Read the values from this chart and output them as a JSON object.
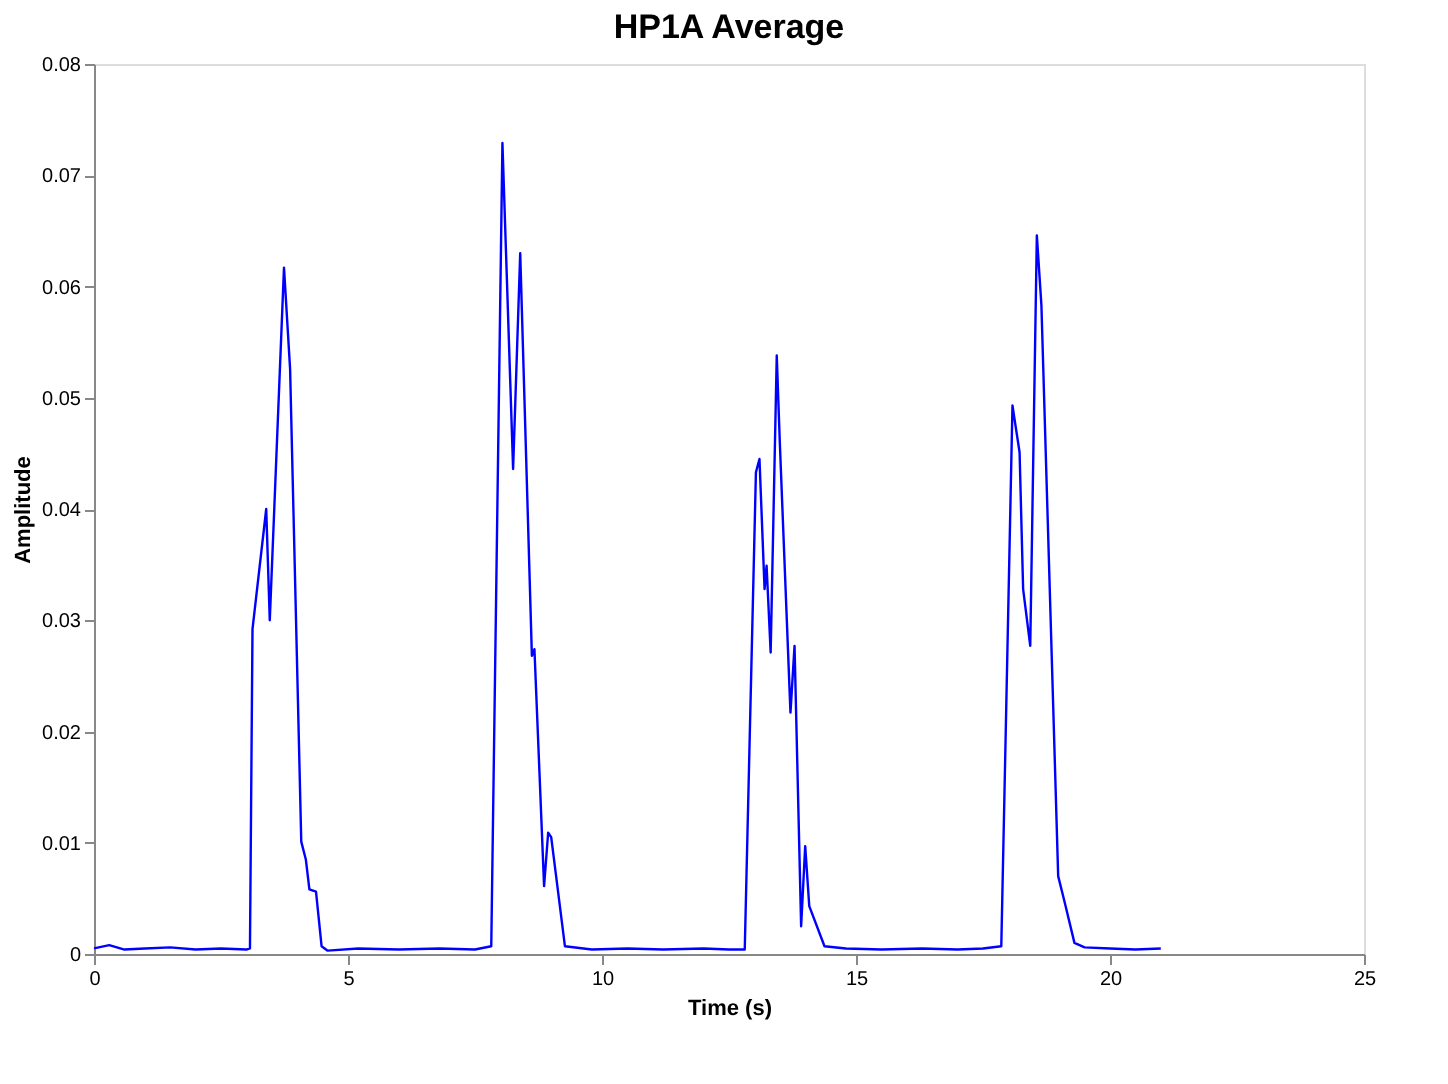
{
  "chart_data": {
    "type": "line",
    "title": "HP1A Average",
    "xlabel": "Time (s)",
    "ylabel": "Amplitude",
    "xlim": [
      0,
      25
    ],
    "xticks": [
      0,
      5,
      10,
      15,
      20,
      25
    ],
    "ylim": [
      0,
      0.08
    ],
    "yticks": [
      0,
      0.01,
      0.02,
      0.03,
      0.04,
      0.05,
      0.06,
      0.07,
      0.08
    ],
    "grid": false,
    "legend": false,
    "marker": "none",
    "line_style": "solid",
    "series": [
      {
        "color": "#0000ff",
        "x": [
          0,
          0.3,
          0.6,
          1.0,
          1.5,
          2.0,
          2.5,
          3.0,
          3.07,
          3.12,
          3.39,
          3.46,
          3.74,
          3.86,
          4.08,
          4.17,
          4.24,
          4.37,
          4.48,
          4.6,
          5.2,
          6.0,
          6.8,
          7.5,
          7.82,
          8.04,
          8.25,
          8.39,
          8.62,
          8.67,
          8.86,
          8.94,
          9.0,
          9.27,
          9.8,
          10.5,
          11.2,
          12.0,
          12.5,
          12.81,
          13.03,
          13.1,
          13.2,
          13.24,
          13.32,
          13.44,
          13.5,
          13.71,
          13.79,
          13.92,
          14.0,
          14.08,
          14.38,
          14.8,
          15.5,
          16.3,
          17.0,
          17.5,
          17.86,
          17.95,
          18.08,
          18.22,
          18.29,
          18.43,
          18.56,
          18.65,
          18.98,
          19.11,
          19.3,
          19.5,
          20.0,
          20.5,
          21.0
        ],
        "values": [
          0.0005,
          0.0008,
          0.0004,
          0.0005,
          0.0006,
          0.0004,
          0.0005,
          0.0004,
          0.0005,
          0.0292,
          0.04,
          0.03,
          0.0617,
          0.0526,
          0.0101,
          0.0085,
          0.0058,
          0.0056,
          0.0007,
          0.0003,
          0.0005,
          0.0004,
          0.0005,
          0.0004,
          0.0007,
          0.0729,
          0.0436,
          0.063,
          0.0268,
          0.0274,
          0.0061,
          0.0109,
          0.0105,
          0.0007,
          0.0004,
          0.0005,
          0.0004,
          0.0005,
          0.0004,
          0.0004,
          0.0433,
          0.0445,
          0.0328,
          0.0349,
          0.0271,
          0.0538,
          0.046,
          0.0217,
          0.0277,
          0.0025,
          0.0097,
          0.0043,
          0.0007,
          0.0005,
          0.0004,
          0.0005,
          0.0004,
          0.0005,
          0.0007,
          0.0205,
          0.0493,
          0.0451,
          0.0328,
          0.0277,
          0.0646,
          0.0583,
          0.007,
          0.0046,
          0.001,
          0.0006,
          0.0005,
          0.0004,
          0.0005
        ]
      }
    ]
  }
}
